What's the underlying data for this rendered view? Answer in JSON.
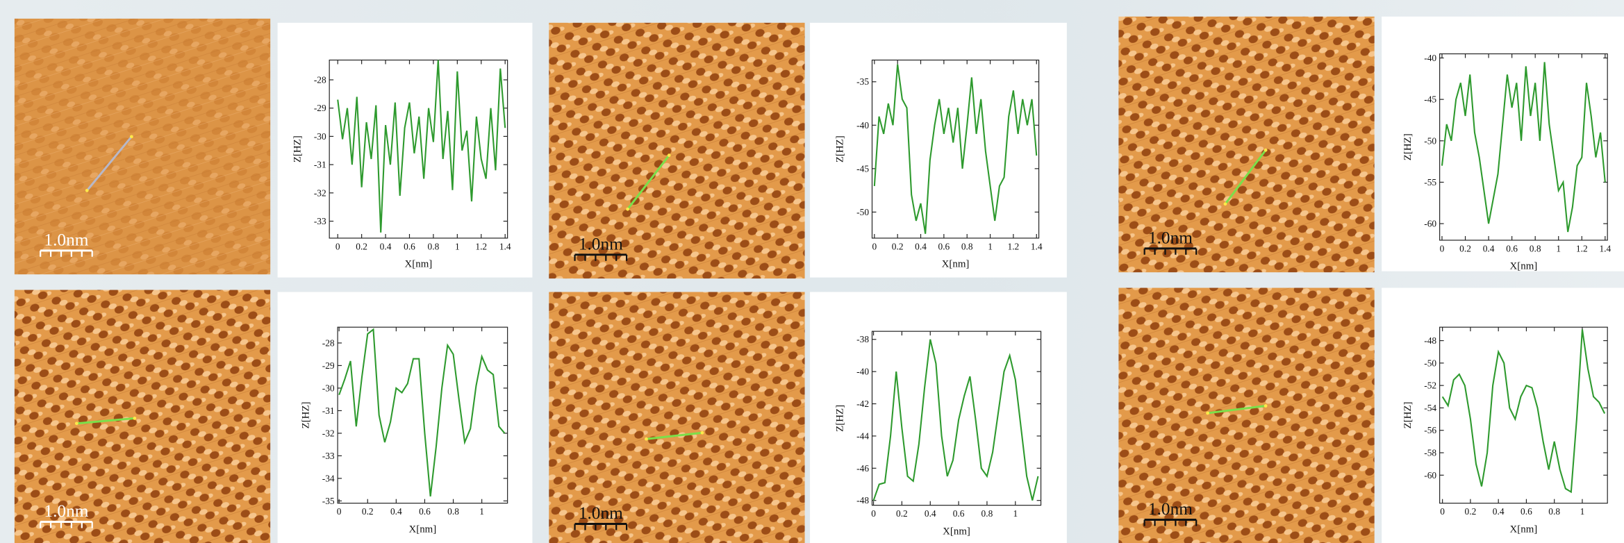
{
  "chart_data": [
    {
      "type": "line",
      "xlabel": "X[nm]",
      "ylabel": "Z[HZ]",
      "color": "#2e9a2e",
      "x": [
        0,
        0.04,
        0.08,
        0.12,
        0.16,
        0.2,
        0.24,
        0.28,
        0.32,
        0.36,
        0.4,
        0.44,
        0.48,
        0.52,
        0.56,
        0.6,
        0.64,
        0.68,
        0.72,
        0.76,
        0.8,
        0.84,
        0.88,
        0.92,
        0.96,
        1,
        1.04,
        1.08,
        1.12,
        1.16,
        1.2,
        1.24,
        1.28,
        1.32,
        1.36,
        1.4
      ],
      "values": [
        -28.7,
        -30.1,
        -29.0,
        -31.0,
        -28.6,
        -31.8,
        -29.5,
        -30.8,
        -28.9,
        -33.4,
        -29.6,
        -31.0,
        -28.8,
        -32.1,
        -29.7,
        -28.8,
        -30.6,
        -29.3,
        -31.5,
        -29.0,
        -30.2,
        -27.3,
        -30.8,
        -29.1,
        -31.9,
        -27.7,
        -30.5,
        -29.8,
        -32.3,
        -29.3,
        -30.8,
        -31.5,
        -29.0,
        -31.2,
        -27.6,
        -29.7
      ],
      "xlim": [
        -0.07,
        1.42
      ],
      "ylim": [
        -33.6,
        -27.3
      ],
      "xticks": [
        0,
        0.2,
        0.4,
        0.6,
        0.8,
        1,
        1.2,
        1.4
      ],
      "yticks": [
        -28,
        -29,
        -30,
        -31,
        -32,
        -33
      ]
    },
    {
      "type": "line",
      "xlabel": "X[nm]",
      "ylabel": "Z[HZ]",
      "color": "#2e9a2e",
      "x": [
        0,
        0.04,
        0.08,
        0.12,
        0.16,
        0.2,
        0.24,
        0.28,
        0.32,
        0.36,
        0.4,
        0.44,
        0.48,
        0.52,
        0.56,
        0.6,
        0.64,
        0.68,
        0.72,
        0.76,
        0.8,
        0.84,
        0.88,
        0.92,
        0.96,
        1,
        1.04,
        1.08,
        1.12,
        1.16,
        1.2,
        1.24,
        1.28,
        1.32,
        1.36,
        1.4
      ],
      "values": [
        -47,
        -39,
        -41,
        -37.5,
        -40,
        -33,
        -37,
        -38,
        -48,
        -51,
        -49,
        -52.5,
        -44,
        -40,
        -37,
        -41,
        -38,
        -42,
        -38,
        -45,
        -40,
        -34.5,
        -41,
        -37,
        -43,
        -47,
        -51,
        -47,
        -46,
        -39,
        -36,
        -41,
        -37,
        -40,
        -37,
        -43.5
      ],
      "xlim": [
        -0.02,
        1.42
      ],
      "ylim": [
        -53,
        -32.5
      ],
      "xticks": [
        0,
        0.2,
        0.4,
        0.6,
        0.8,
        1,
        1.2,
        1.4
      ],
      "yticks": [
        -35,
        -40,
        -45,
        -50
      ]
    },
    {
      "type": "line",
      "xlabel": "X[nm]",
      "ylabel": "Z[HZ]",
      "color": "#2e9a2e",
      "x": [
        0,
        0.04,
        0.08,
        0.12,
        0.16,
        0.2,
        0.24,
        0.28,
        0.32,
        0.36,
        0.4,
        0.44,
        0.48,
        0.52,
        0.56,
        0.6,
        0.64,
        0.68,
        0.72,
        0.76,
        0.8,
        0.84,
        0.88,
        0.92,
        0.96,
        1,
        1.04,
        1.08,
        1.12,
        1.16,
        1.2,
        1.24,
        1.28,
        1.32,
        1.36,
        1.4
      ],
      "values": [
        -53,
        -48,
        -50,
        -45,
        -43,
        -47,
        -42,
        -49,
        -52,
        -56,
        -60,
        -57,
        -54,
        -48,
        -42,
        -46,
        -43,
        -50,
        -41,
        -47,
        -43,
        -50,
        -40.5,
        -48,
        -52,
        -56,
        -55,
        -61,
        -58,
        -53,
        -52,
        -43,
        -47,
        -52,
        -49,
        -55
      ],
      "xlim": [
        -0.02,
        1.42
      ],
      "ylim": [
        -62,
        -39.5
      ],
      "xticks": [
        0,
        0.2,
        0.4,
        0.6,
        0.8,
        1,
        1.2,
        1.4
      ],
      "yticks": [
        -40,
        -45,
        -50,
        -55,
        -60
      ]
    },
    {
      "type": "line",
      "xlabel": "X[nm]",
      "ylabel": "Z[HZ]",
      "color": "#2e9a2e",
      "x": [
        0,
        0.04,
        0.08,
        0.12,
        0.16,
        0.2,
        0.24,
        0.28,
        0.32,
        0.36,
        0.4,
        0.44,
        0.48,
        0.52,
        0.56,
        0.6,
        0.64,
        0.68,
        0.72,
        0.76,
        0.8,
        0.84,
        0.88,
        0.92,
        0.96,
        1,
        1.04,
        1.08,
        1.12,
        1.16
      ],
      "values": [
        -30.3,
        -29.6,
        -28.8,
        -31.7,
        -29.5,
        -27.6,
        -27.4,
        -31.2,
        -32.4,
        -31.5,
        -30.0,
        -30.2,
        -29.8,
        -28.7,
        -28.7,
        -32.0,
        -34.8,
        -32.6,
        -30.0,
        -28.1,
        -28.5,
        -30.5,
        -32.4,
        -31.8,
        -29.9,
        -28.6,
        -29.2,
        -29.4,
        -31.7,
        -32.0
      ],
      "xlim": [
        -0.01,
        1.18
      ],
      "ylim": [
        -35.1,
        -27.3
      ],
      "xticks": [
        0,
        0.2,
        0.4,
        0.6,
        0.8,
        1
      ],
      "yticks": [
        -28,
        -29,
        -30,
        -31,
        -32,
        -33,
        -34,
        -35
      ]
    },
    {
      "type": "line",
      "xlabel": "X[nm]",
      "ylabel": "Z[HZ]",
      "color": "#2e9a2e",
      "x": [
        0,
        0.04,
        0.08,
        0.12,
        0.16,
        0.2,
        0.24,
        0.28,
        0.32,
        0.36,
        0.4,
        0.44,
        0.48,
        0.52,
        0.56,
        0.6,
        0.64,
        0.68,
        0.72,
        0.76,
        0.8,
        0.84,
        0.88,
        0.92,
        0.96,
        1,
        1.04,
        1.08,
        1.12,
        1.16
      ],
      "values": [
        -48,
        -47,
        -46.9,
        -44,
        -40,
        -43.5,
        -46.5,
        -46.8,
        -44.5,
        -41,
        -38,
        -39.5,
        -44,
        -46.5,
        -45.5,
        -43,
        -41.5,
        -40.3,
        -43,
        -46,
        -46.5,
        -45,
        -42.5,
        -40,
        -39,
        -40.5,
        -43.5,
        -46.5,
        -48,
        -46.5
      ],
      "xlim": [
        -0.01,
        1.18
      ],
      "ylim": [
        -48.3,
        -37.5
      ],
      "xticks": [
        0,
        0.2,
        0.4,
        0.6,
        0.8,
        1
      ],
      "yticks": [
        -38,
        -40,
        -42,
        -44,
        -46,
        -48
      ]
    },
    {
      "type": "line",
      "xlabel": "X[nm]",
      "ylabel": "Z[HZ]",
      "color": "#2e9a2e",
      "x": [
        0,
        0.04,
        0.08,
        0.12,
        0.16,
        0.2,
        0.24,
        0.28,
        0.32,
        0.36,
        0.4,
        0.44,
        0.48,
        0.52,
        0.56,
        0.6,
        0.64,
        0.68,
        0.72,
        0.76,
        0.8,
        0.84,
        0.88,
        0.92,
        0.96,
        1,
        1.04,
        1.08,
        1.12,
        1.16
      ],
      "values": [
        -53,
        -53.8,
        -51.5,
        -51,
        -52,
        -55,
        -59,
        -61,
        -58,
        -52,
        -49,
        -50,
        -54,
        -55,
        -53,
        -52,
        -52.2,
        -54,
        -57,
        -59.5,
        -57,
        -59.5,
        -61.2,
        -61.5,
        -55,
        -47,
        -50.5,
        -53,
        -53.5,
        -54.5
      ],
      "xlim": [
        -0.02,
        1.18
      ],
      "ylim": [
        -62.5,
        -46.8
      ],
      "xticks": [
        0,
        0.2,
        0.4,
        0.6,
        0.8,
        1
      ],
      "yticks": [
        -48,
        -50,
        -52,
        -54,
        -56,
        -58,
        -60
      ]
    }
  ],
  "images": [
    {
      "scale_bar": "1.0nm"
    },
    {
      "scale_bar": "1.0nm"
    },
    {
      "scale_bar": "1.0nm"
    },
    {
      "scale_bar": "1.0nm"
    },
    {
      "scale_bar": "1.0nm"
    },
    {
      "scale_bar": "1.0nm"
    }
  ]
}
